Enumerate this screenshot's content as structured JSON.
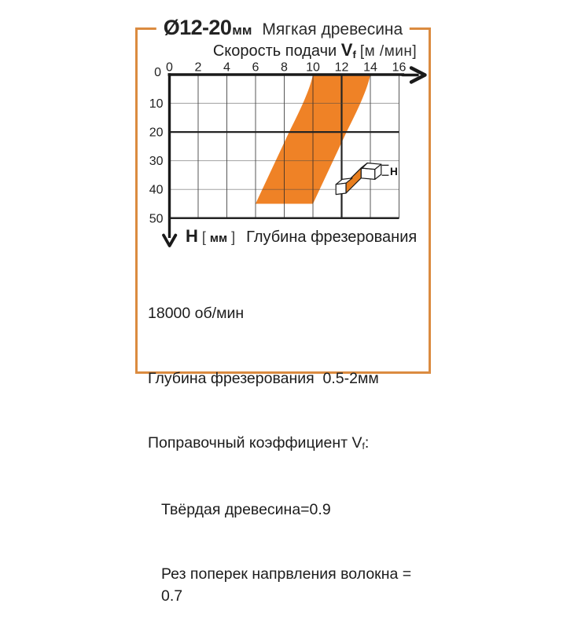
{
  "header": {
    "diameter": "Ø12-20",
    "diameter_unit": "мм",
    "material": "Мягкая древесина"
  },
  "x_axis_title": {
    "prefix": "Скорость подачи",
    "symbol": "V",
    "symbol_sub": "f",
    "unit": "[м /мин]"
  },
  "y_axis_title": {
    "symbol": "H",
    "bracket_open": "[",
    "unit": "мм",
    "bracket_close": "]",
    "label": "Глубина фрезерования"
  },
  "chart_data": {
    "type": "area",
    "title": "Ø12-20 мм Мягкая древесина",
    "xlabel": "Скорость подачи Vf [м/мин]",
    "ylabel": "H [мм] Глубина фрезерования",
    "x_ticks": [
      0,
      2,
      4,
      6,
      8,
      10,
      12,
      14,
      16
    ],
    "y_ticks": [
      0,
      10,
      20,
      30,
      40,
      50
    ],
    "xlim": [
      0,
      16
    ],
    "ylim": [
      0,
      50
    ],
    "grid": true,
    "emphasized_x_lines": [
      12
    ],
    "emphasized_y_lines": [
      20,
      50
    ],
    "band": {
      "name": "working-feed-zone",
      "color": "#EF8226",
      "y_top": 0,
      "top_x": [
        10,
        14
      ],
      "y_bottom": 45,
      "bottom_x": [
        6,
        10
      ]
    }
  },
  "workpiece_icon": {
    "label": "H",
    "orange_top": "#F29133",
    "orange_front": "#E87E1E"
  },
  "notes": {
    "rpm": "18000 об/мин",
    "depth": "Глубина фрезерования  0.5-2мм",
    "factor": {
      "prefix": "Поправочный коэффициент ",
      "symbol": "V",
      "symbol_sub": "f",
      "suffix": ":"
    },
    "hard_wood": "Твёрдая древесина=0.9",
    "cross_grain": "Рез поперек напрвления волокна = 0.7"
  },
  "colors": {
    "frame": "#DB8B40",
    "band": "#EF8226",
    "axis": "#1A1A1A",
    "grid_thin": "#9B9B9B",
    "grid_dark": "#242424"
  }
}
